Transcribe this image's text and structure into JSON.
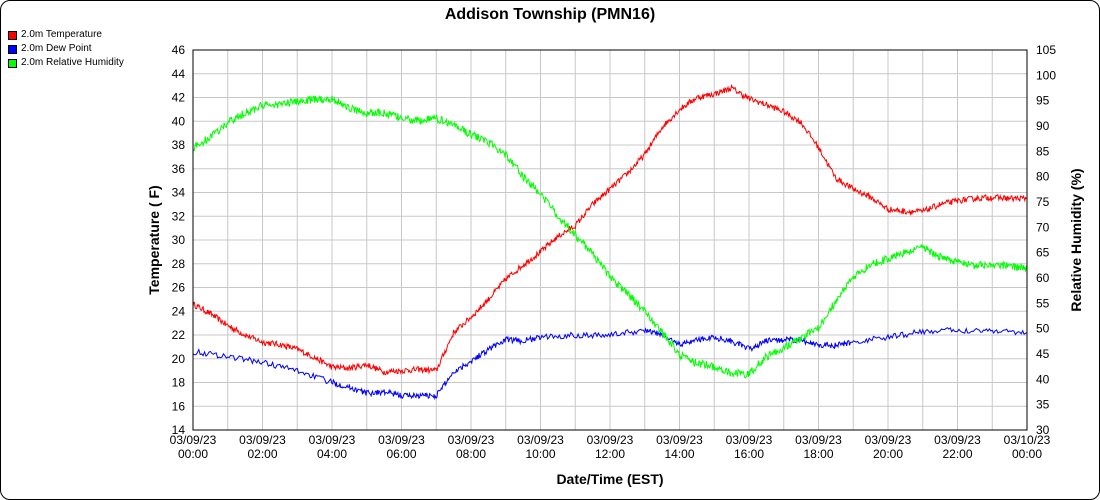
{
  "chart_data": {
    "type": "line",
    "title": "Addison Township (PMN16)",
    "xlabel": "Date/Time (EST)",
    "ylabel_left": "Temperature ( F)",
    "ylabel_right": "Relative Humidity (%)",
    "y_left": {
      "min": 14,
      "max": 46,
      "step": 2
    },
    "y_right": {
      "min": 30,
      "max": 105,
      "step": 5
    },
    "x_range_hours": [
      0,
      24
    ],
    "x_ticks": [
      {
        "date": "03/09/23",
        "time": "00:00"
      },
      {
        "date": "03/09/23",
        "time": "02:00"
      },
      {
        "date": "03/09/23",
        "time": "04:00"
      },
      {
        "date": "03/09/23",
        "time": "06:00"
      },
      {
        "date": "03/09/23",
        "time": "08:00"
      },
      {
        "date": "03/09/23",
        "time": "10:00"
      },
      {
        "date": "03/09/23",
        "time": "12:00"
      },
      {
        "date": "03/09/23",
        "time": "14:00"
      },
      {
        "date": "03/09/23",
        "time": "16:00"
      },
      {
        "date": "03/09/23",
        "time": "18:00"
      },
      {
        "date": "03/09/23",
        "time": "20:00"
      },
      {
        "date": "03/09/23",
        "time": "22:00"
      },
      {
        "date": "03/10/23",
        "time": "00:00"
      }
    ],
    "grid": true,
    "legend_position": "top-left",
    "series": [
      {
        "name": "2.0m Temperature",
        "color": "#ff0000",
        "axis": "left",
        "points": [
          [
            0,
            24.6
          ],
          [
            0.5,
            23.8
          ],
          [
            1,
            22.8
          ],
          [
            1.5,
            22
          ],
          [
            2,
            21.4
          ],
          [
            2.5,
            21.2
          ],
          [
            3,
            20.8
          ],
          [
            3.5,
            20.1
          ],
          [
            4,
            19.3
          ],
          [
            4.5,
            19.2
          ],
          [
            5,
            19.5
          ],
          [
            5.5,
            18.9
          ],
          [
            6,
            19
          ],
          [
            6.5,
            19.1
          ],
          [
            7,
            19
          ],
          [
            7.5,
            22.2
          ],
          [
            8,
            23.5
          ],
          [
            8.5,
            25
          ],
          [
            9,
            26.7
          ],
          [
            9.5,
            27.9
          ],
          [
            10,
            29
          ],
          [
            10.5,
            30.3
          ],
          [
            11,
            31.2
          ],
          [
            11.5,
            33
          ],
          [
            12,
            34.3
          ],
          [
            12.5,
            35.6
          ],
          [
            13,
            37.2
          ],
          [
            13.5,
            39.5
          ],
          [
            14,
            41
          ],
          [
            14.5,
            42
          ],
          [
            15,
            42.3
          ],
          [
            15.5,
            42.8
          ],
          [
            16,
            41.9
          ],
          [
            16.5,
            41.4
          ],
          [
            17,
            40.8
          ],
          [
            17.5,
            39.9
          ],
          [
            18,
            37.8
          ],
          [
            18.5,
            35.2
          ],
          [
            19,
            34.3
          ],
          [
            19.5,
            33.6
          ],
          [
            20,
            32.6
          ],
          [
            20.5,
            32.4
          ],
          [
            21,
            32.4
          ],
          [
            21.5,
            33
          ],
          [
            22,
            33.3
          ],
          [
            22.5,
            33.5
          ],
          [
            23,
            33.6
          ],
          [
            23.5,
            33.5
          ],
          [
            24,
            33.5
          ]
        ]
      },
      {
        "name": "2.0m Dew Point",
        "color": "#0000ff",
        "axis": "left",
        "points": [
          [
            0,
            20.6
          ],
          [
            1,
            20.2
          ],
          [
            2,
            19.7
          ],
          [
            3,
            19
          ],
          [
            4,
            18
          ],
          [
            4.5,
            17.6
          ],
          [
            5,
            17.1
          ],
          [
            5.5,
            17.2
          ],
          [
            6,
            16.9
          ],
          [
            6.5,
            16.9
          ],
          [
            7,
            16.9
          ],
          [
            7.5,
            18.9
          ],
          [
            8,
            19.8
          ],
          [
            8.5,
            20.8
          ],
          [
            9,
            21.6
          ],
          [
            9.5,
            21.5
          ],
          [
            10,
            21.8
          ],
          [
            11,
            22
          ],
          [
            12,
            22
          ],
          [
            13,
            22.4
          ],
          [
            13.5,
            22
          ],
          [
            14,
            21.2
          ],
          [
            14.5,
            21.6
          ],
          [
            15,
            21.8
          ],
          [
            15.5,
            21.5
          ],
          [
            16,
            20.8
          ],
          [
            16.5,
            21.5
          ],
          [
            17,
            21.6
          ],
          [
            17.5,
            21.5
          ],
          [
            18,
            21.2
          ],
          [
            18.5,
            21.1
          ],
          [
            19,
            21.4
          ],
          [
            20,
            21.8
          ],
          [
            21,
            22.3
          ],
          [
            22,
            22.4
          ],
          [
            23,
            22.4
          ],
          [
            24,
            22.2
          ]
        ]
      },
      {
        "name": "2.0m Relative Humidity",
        "color": "#00ff00",
        "axis": "right",
        "points": [
          [
            0,
            85.6
          ],
          [
            0.5,
            87.8
          ],
          [
            1,
            90.6
          ],
          [
            1.5,
            92.6
          ],
          [
            2,
            94
          ],
          [
            2.5,
            94.3
          ],
          [
            3,
            94.8
          ],
          [
            3.5,
            95.2
          ],
          [
            4,
            95.4
          ],
          [
            4.5,
            93.5
          ],
          [
            5,
            92.5
          ],
          [
            5.5,
            92.6
          ],
          [
            6,
            91.5
          ],
          [
            6.5,
            91
          ],
          [
            7,
            91.5
          ],
          [
            7.5,
            90.3
          ],
          [
            8,
            88.3
          ],
          [
            8.5,
            86.8
          ],
          [
            9,
            84.5
          ],
          [
            9.5,
            80
          ],
          [
            10,
            76.5
          ],
          [
            10.5,
            72.3
          ],
          [
            11,
            68.5
          ],
          [
            11.5,
            64.8
          ],
          [
            12,
            60.2
          ],
          [
            12.5,
            57
          ],
          [
            13,
            53.4
          ],
          [
            13.5,
            49.3
          ],
          [
            14,
            44.8
          ],
          [
            14.5,
            43.2
          ],
          [
            15,
            42.5
          ],
          [
            15.5,
            41.2
          ],
          [
            16,
            41
          ],
          [
            16.5,
            44.5
          ],
          [
            17,
            46.3
          ],
          [
            17.5,
            48.2
          ],
          [
            18,
            50
          ],
          [
            18.5,
            55.5
          ],
          [
            19,
            60
          ],
          [
            19.5,
            62.8
          ],
          [
            20,
            63.8
          ],
          [
            20.5,
            65
          ],
          [
            21,
            66
          ],
          [
            21.5,
            64.2
          ],
          [
            22,
            63.3
          ],
          [
            22.5,
            62.5
          ],
          [
            23,
            62.6
          ],
          [
            23.5,
            62.3
          ],
          [
            24,
            62
          ]
        ]
      }
    ]
  }
}
